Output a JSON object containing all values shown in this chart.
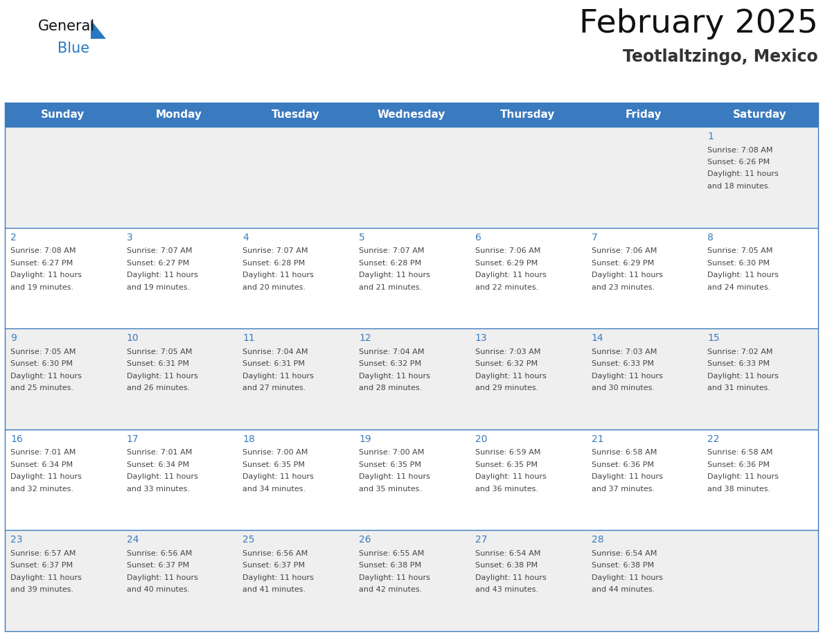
{
  "title": "February 2025",
  "subtitle": "Teotlaltzingo, Mexico",
  "header_color": "#3a7abf",
  "header_text_color": "#ffffff",
  "day_names": [
    "Sunday",
    "Monday",
    "Tuesday",
    "Wednesday",
    "Thursday",
    "Friday",
    "Saturday"
  ],
  "bg_color_row0": "#efefef",
  "bg_color_row1": "#ffffff",
  "bg_color_row2": "#efefef",
  "bg_color_row3": "#ffffff",
  "bg_color_row4": "#efefef",
  "cell_border_color": "#3a7abf",
  "day_number_color": "#3a7abf",
  "info_text_color": "#444444",
  "logo_text_color": "#111111",
  "logo_blue_color": "#2878c0",
  "title_color": "#111111",
  "subtitle_color": "#333333",
  "days": [
    {
      "day": 1,
      "col": 6,
      "row": 0,
      "sunrise": "7:08 AM",
      "sunset": "6:26 PM",
      "daylight_hours": 11,
      "daylight_minutes": 18
    },
    {
      "day": 2,
      "col": 0,
      "row": 1,
      "sunrise": "7:08 AM",
      "sunset": "6:27 PM",
      "daylight_hours": 11,
      "daylight_minutes": 19
    },
    {
      "day": 3,
      "col": 1,
      "row": 1,
      "sunrise": "7:07 AM",
      "sunset": "6:27 PM",
      "daylight_hours": 11,
      "daylight_minutes": 19
    },
    {
      "day": 4,
      "col": 2,
      "row": 1,
      "sunrise": "7:07 AM",
      "sunset": "6:28 PM",
      "daylight_hours": 11,
      "daylight_minutes": 20
    },
    {
      "day": 5,
      "col": 3,
      "row": 1,
      "sunrise": "7:07 AM",
      "sunset": "6:28 PM",
      "daylight_hours": 11,
      "daylight_minutes": 21
    },
    {
      "day": 6,
      "col": 4,
      "row": 1,
      "sunrise": "7:06 AM",
      "sunset": "6:29 PM",
      "daylight_hours": 11,
      "daylight_minutes": 22
    },
    {
      "day": 7,
      "col": 5,
      "row": 1,
      "sunrise": "7:06 AM",
      "sunset": "6:29 PM",
      "daylight_hours": 11,
      "daylight_minutes": 23
    },
    {
      "day": 8,
      "col": 6,
      "row": 1,
      "sunrise": "7:05 AM",
      "sunset": "6:30 PM",
      "daylight_hours": 11,
      "daylight_minutes": 24
    },
    {
      "day": 9,
      "col": 0,
      "row": 2,
      "sunrise": "7:05 AM",
      "sunset": "6:30 PM",
      "daylight_hours": 11,
      "daylight_minutes": 25
    },
    {
      "day": 10,
      "col": 1,
      "row": 2,
      "sunrise": "7:05 AM",
      "sunset": "6:31 PM",
      "daylight_hours": 11,
      "daylight_minutes": 26
    },
    {
      "day": 11,
      "col": 2,
      "row": 2,
      "sunrise": "7:04 AM",
      "sunset": "6:31 PM",
      "daylight_hours": 11,
      "daylight_minutes": 27
    },
    {
      "day": 12,
      "col": 3,
      "row": 2,
      "sunrise": "7:04 AM",
      "sunset": "6:32 PM",
      "daylight_hours": 11,
      "daylight_minutes": 28
    },
    {
      "day": 13,
      "col": 4,
      "row": 2,
      "sunrise": "7:03 AM",
      "sunset": "6:32 PM",
      "daylight_hours": 11,
      "daylight_minutes": 29
    },
    {
      "day": 14,
      "col": 5,
      "row": 2,
      "sunrise": "7:03 AM",
      "sunset": "6:33 PM",
      "daylight_hours": 11,
      "daylight_minutes": 30
    },
    {
      "day": 15,
      "col": 6,
      "row": 2,
      "sunrise": "7:02 AM",
      "sunset": "6:33 PM",
      "daylight_hours": 11,
      "daylight_minutes": 31
    },
    {
      "day": 16,
      "col": 0,
      "row": 3,
      "sunrise": "7:01 AM",
      "sunset": "6:34 PM",
      "daylight_hours": 11,
      "daylight_minutes": 32
    },
    {
      "day": 17,
      "col": 1,
      "row": 3,
      "sunrise": "7:01 AM",
      "sunset": "6:34 PM",
      "daylight_hours": 11,
      "daylight_minutes": 33
    },
    {
      "day": 18,
      "col": 2,
      "row": 3,
      "sunrise": "7:00 AM",
      "sunset": "6:35 PM",
      "daylight_hours": 11,
      "daylight_minutes": 34
    },
    {
      "day": 19,
      "col": 3,
      "row": 3,
      "sunrise": "7:00 AM",
      "sunset": "6:35 PM",
      "daylight_hours": 11,
      "daylight_minutes": 35
    },
    {
      "day": 20,
      "col": 4,
      "row": 3,
      "sunrise": "6:59 AM",
      "sunset": "6:35 PM",
      "daylight_hours": 11,
      "daylight_minutes": 36
    },
    {
      "day": 21,
      "col": 5,
      "row": 3,
      "sunrise": "6:58 AM",
      "sunset": "6:36 PM",
      "daylight_hours": 11,
      "daylight_minutes": 37
    },
    {
      "day": 22,
      "col": 6,
      "row": 3,
      "sunrise": "6:58 AM",
      "sunset": "6:36 PM",
      "daylight_hours": 11,
      "daylight_minutes": 38
    },
    {
      "day": 23,
      "col": 0,
      "row": 4,
      "sunrise": "6:57 AM",
      "sunset": "6:37 PM",
      "daylight_hours": 11,
      "daylight_minutes": 39
    },
    {
      "day": 24,
      "col": 1,
      "row": 4,
      "sunrise": "6:56 AM",
      "sunset": "6:37 PM",
      "daylight_hours": 11,
      "daylight_minutes": 40
    },
    {
      "day": 25,
      "col": 2,
      "row": 4,
      "sunrise": "6:56 AM",
      "sunset": "6:37 PM",
      "daylight_hours": 11,
      "daylight_minutes": 41
    },
    {
      "day": 26,
      "col": 3,
      "row": 4,
      "sunrise": "6:55 AM",
      "sunset": "6:38 PM",
      "daylight_hours": 11,
      "daylight_minutes": 42
    },
    {
      "day": 27,
      "col": 4,
      "row": 4,
      "sunrise": "6:54 AM",
      "sunset": "6:38 PM",
      "daylight_hours": 11,
      "daylight_minutes": 43
    },
    {
      "day": 28,
      "col": 5,
      "row": 4,
      "sunrise": "6:54 AM",
      "sunset": "6:38 PM",
      "daylight_hours": 11,
      "daylight_minutes": 44
    }
  ]
}
